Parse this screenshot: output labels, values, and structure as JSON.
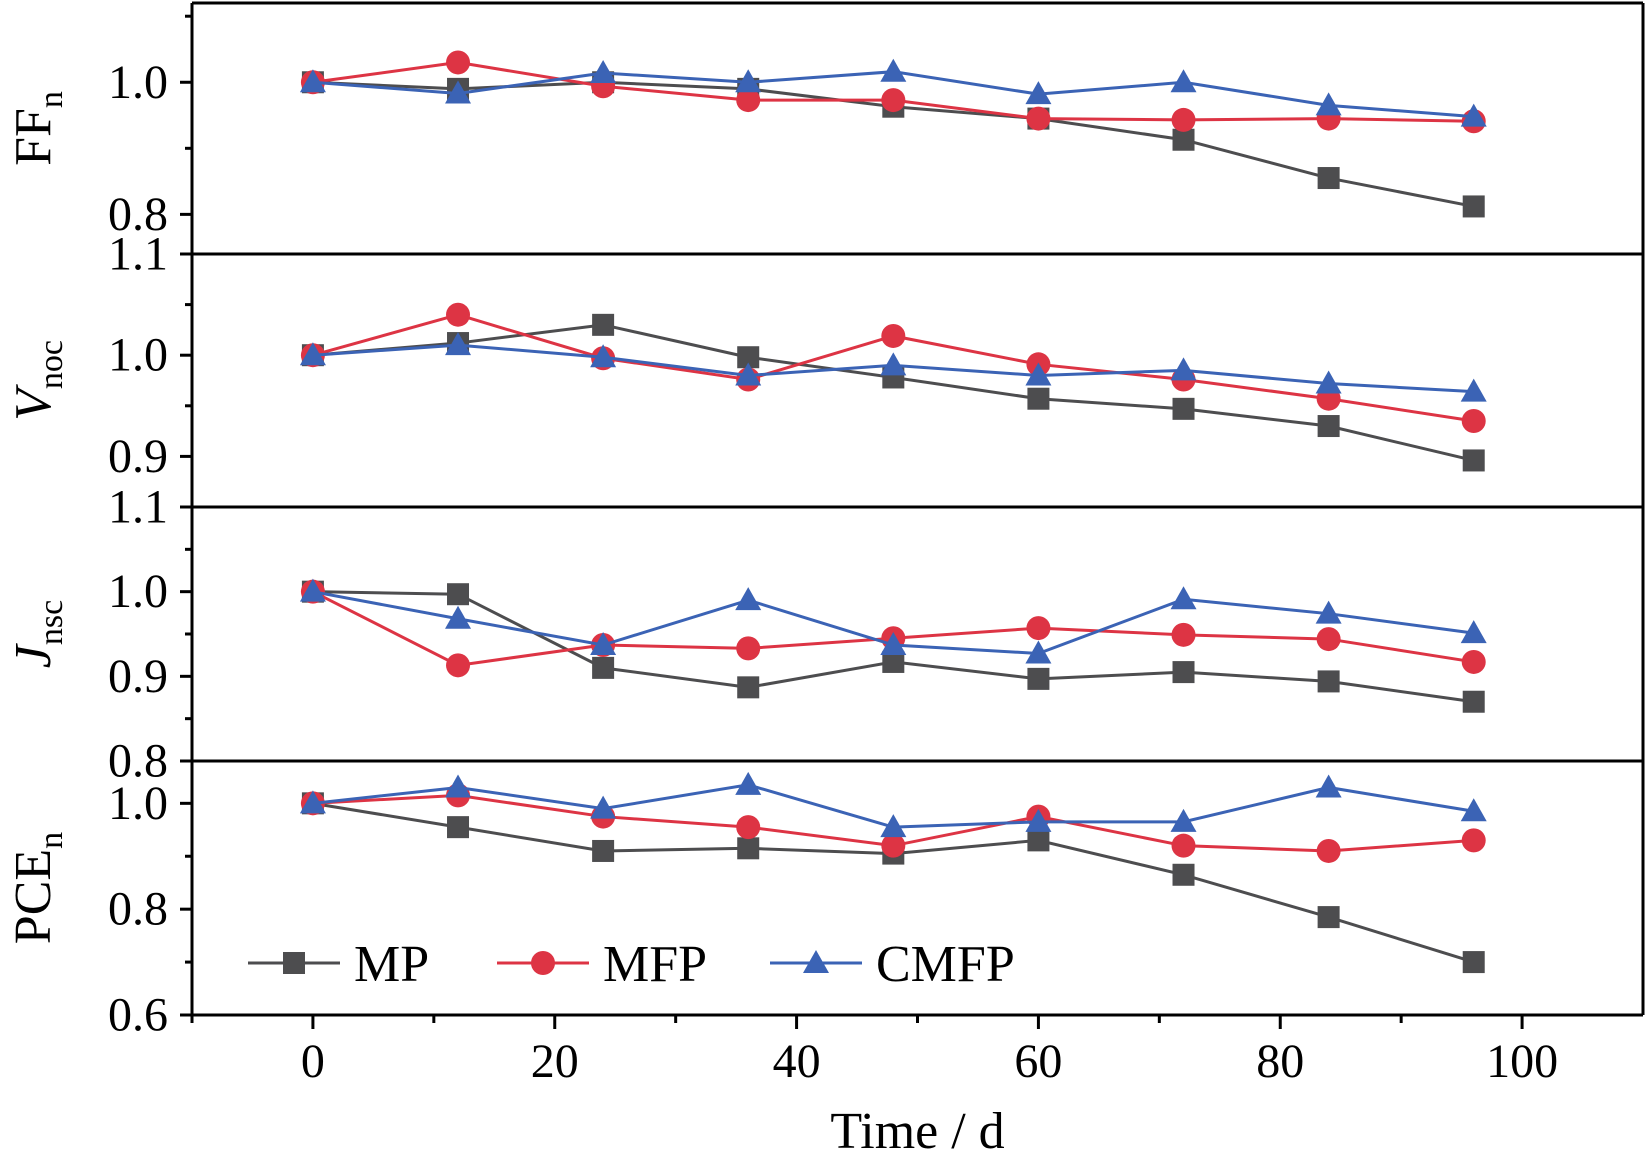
{
  "colors": {
    "MP": "#4d4d4f",
    "MFP": "#dd3444",
    "CMFP": "#3b63b5",
    "axis": "#000000"
  },
  "chart_data": {
    "type": "line",
    "x_axis": {
      "label": "Time / d",
      "range": [
        -10,
        110
      ],
      "ticks": [
        0,
        20,
        40,
        60,
        80,
        100
      ],
      "tick_labels": [
        "0",
        "20",
        "40",
        "60",
        "80",
        "100"
      ]
    },
    "x": [
      0,
      12,
      24,
      36,
      48,
      60,
      72,
      84,
      96
    ],
    "legend": {
      "placement": "lower-left of bottom panel",
      "entries": [
        {
          "name": "MP",
          "marker": "square"
        },
        {
          "name": "MFP",
          "marker": "circle"
        },
        {
          "name": "CMFP",
          "marker": "triangle"
        }
      ]
    },
    "panels": [
      {
        "id": "ff",
        "ylabel_main": "FF",
        "ylabel_sub": "n",
        "ylabel_italic": false,
        "ylim": [
          0.74,
          1.12
        ],
        "major_ticks": [
          0.8,
          1.0
        ],
        "tick_labels": [
          "0.8",
          "1.0"
        ],
        "minor_ticks": [
          0.9,
          1.1
        ],
        "series": [
          {
            "name": "MP",
            "marker": "square",
            "values": [
              1.0,
              0.99,
              1.0,
              0.99,
              0.963,
              0.945,
              0.913,
              0.855,
              0.812
            ]
          },
          {
            "name": "MFP",
            "marker": "circle",
            "values": [
              1.0,
              1.03,
              0.994,
              0.973,
              0.973,
              0.945,
              0.943,
              0.945,
              0.941
            ]
          },
          {
            "name": "CMFP",
            "marker": "triangle",
            "values": [
              1.0,
              0.983,
              1.014,
              1.0,
              1.016,
              0.982,
              1.0,
              0.965,
              0.948
            ]
          }
        ]
      },
      {
        "id": "voc",
        "ylabel_main": "V",
        "ylabel_sub": "noc",
        "ylabel_italic": true,
        "ylim": [
          0.85,
          1.1
        ],
        "major_ticks": [
          0.9,
          1.0,
          1.1
        ],
        "tick_labels": [
          "0.9",
          "1.0",
          "1.1"
        ],
        "minor_ticks": [
          0.95,
          1.05
        ],
        "series": [
          {
            "name": "MP",
            "marker": "square",
            "values": [
              1.0,
              1.012,
              1.03,
              0.998,
              0.978,
              0.957,
              0.947,
              0.93,
              0.896
            ]
          },
          {
            "name": "MFP",
            "marker": "circle",
            "values": [
              1.0,
              1.04,
              0.997,
              0.976,
              1.019,
              0.991,
              0.976,
              0.957,
              0.935
            ]
          },
          {
            "name": "CMFP",
            "marker": "triangle",
            "values": [
              1.0,
              1.01,
              0.998,
              0.98,
              0.99,
              0.98,
              0.985,
              0.972,
              0.964
            ]
          }
        ]
      },
      {
        "id": "jsc",
        "ylabel_main": "J",
        "ylabel_sub": "nsc",
        "ylabel_italic": true,
        "ylim": [
          0.8,
          1.1
        ],
        "major_ticks": [
          0.8,
          0.9,
          1.0,
          1.1
        ],
        "tick_labels": [
          "0.8",
          "0.9",
          "1.0",
          "1.1"
        ],
        "minor_ticks": [
          0.85,
          0.95,
          1.05
        ],
        "series": [
          {
            "name": "MP",
            "marker": "square",
            "values": [
              1.0,
              0.997,
              0.91,
              0.887,
              0.917,
              0.897,
              0.905,
              0.894,
              0.87
            ]
          },
          {
            "name": "MFP",
            "marker": "circle",
            "values": [
              1.0,
              0.913,
              0.937,
              0.933,
              0.945,
              0.957,
              0.949,
              0.944,
              0.917
            ]
          },
          {
            "name": "CMFP",
            "marker": "triangle",
            "values": [
              1.0,
              0.968,
              0.937,
              0.99,
              0.937,
              0.927,
              0.991,
              0.974,
              0.951
            ]
          }
        ]
      },
      {
        "id": "pce",
        "ylabel_main": "PCE",
        "ylabel_sub": "n",
        "ylabel_italic": false,
        "ylim": [
          0.6,
          1.08
        ],
        "major_ticks": [
          0.6,
          0.8,
          1.0
        ],
        "tick_labels": [
          "0.6",
          "0.8",
          "1.0"
        ],
        "minor_ticks": [
          0.7,
          0.9
        ],
        "series": [
          {
            "name": "MP",
            "marker": "square",
            "values": [
              1.0,
              0.955,
              0.91,
              0.915,
              0.905,
              0.93,
              0.865,
              0.785,
              0.7
            ]
          },
          {
            "name": "MFP",
            "marker": "circle",
            "values": [
              1.0,
              1.015,
              0.975,
              0.955,
              0.92,
              0.975,
              0.92,
              0.91,
              0.93
            ]
          },
          {
            "name": "CMFP",
            "marker": "triangle",
            "values": [
              1.0,
              1.03,
              0.99,
              1.035,
              0.955,
              0.965,
              0.965,
              1.03,
              0.985
            ]
          }
        ]
      }
    ]
  }
}
